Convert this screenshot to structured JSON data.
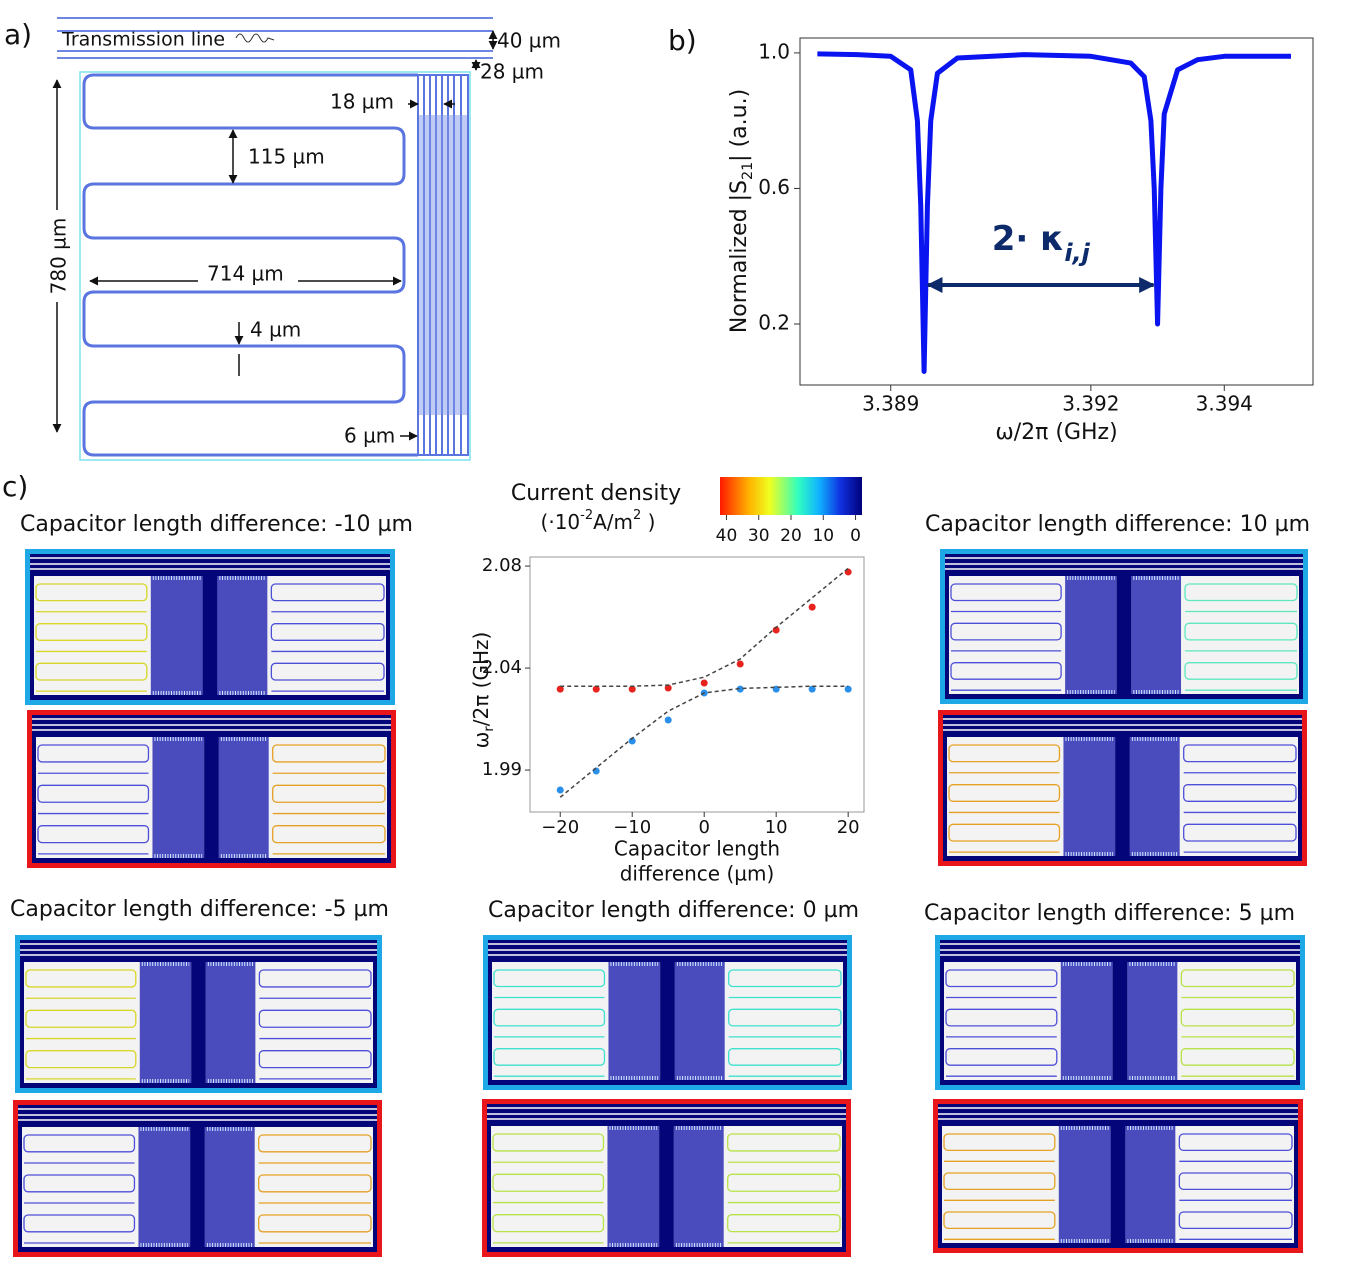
{
  "panel_labels": [
    "a)",
    "b)",
    "c)"
  ],
  "panel_a": {
    "transmission_line": "Transmission line",
    "dimensions": [
      "40 µm",
      "28 µm",
      "18 µm",
      "115 µm",
      "780 µm",
      "714 µm",
      "4 µm",
      "6 µm"
    ]
  },
  "chart_data": [
    {
      "type": "line",
      "xlabel": "ω/2π (GHz)",
      "ylabel": [
        "Normalized |S",
        "21",
        "| (a.u.)"
      ],
      "x": [
        3.3879,
        3.3885,
        3.389,
        3.3893,
        3.3894,
        3.38945,
        3.3895,
        3.38955,
        3.3896,
        3.3897,
        3.39,
        3.391,
        3.392,
        3.3926,
        3.3928,
        3.3929,
        3.39295,
        3.393,
        3.39305,
        3.3931,
        3.3933,
        3.3936,
        3.394,
        3.395
      ],
      "values": [
        0.997,
        0.995,
        0.99,
        0.95,
        0.8,
        0.55,
        0.06,
        0.55,
        0.8,
        0.94,
        0.985,
        0.995,
        0.99,
        0.97,
        0.93,
        0.8,
        0.6,
        0.2,
        0.6,
        0.82,
        0.95,
        0.98,
        0.99,
        0.99
      ],
      "color": "#0a14f0",
      "xlim": [
        3.38764,
        3.39533
      ],
      "xticks": [
        3.389,
        3.392,
        3.394
      ],
      "ylim": [
        0.02,
        1.044
      ],
      "yticks": [
        {
          "value": 1,
          "label": "1.0"
        },
        {
          "value": 0.6,
          "label": "0.6"
        },
        {
          "value": 0.2,
          "label": "0.2"
        }
      ],
      "annotation": {
        "text": "2· κ",
        "subscript": "i,j",
        "color": "#0d2a6b"
      }
    },
    {
      "type": "scatter",
      "xlabel": [
        "Capacitor length",
        "difference (µm)"
      ],
      "ylabel": [
        "ω",
        "r",
        "/2π (GHz)"
      ],
      "xlim": [
        -24.2,
        22.2
      ],
      "xticks": [
        {
          "value": -20,
          "label": "−20"
        },
        {
          "value": -10,
          "label": "−10"
        },
        0,
        10,
        20
      ],
      "ylim": [
        1.9715,
        2.084
      ],
      "yticks": [
        2.08,
        {
          "value": 2.035,
          "label": "2.04"
        },
        1.99
      ],
      "series": [
        {
          "color": "#e8221c",
          "x": [
            -20,
            -15,
            -10,
            -5,
            0,
            5,
            10,
            15,
            20
          ],
          "values": [
            2.0257,
            2.0257,
            2.0257,
            2.0262,
            2.0284,
            2.0368,
            2.0518,
            2.0619,
            2.0774
          ]
        },
        {
          "color": "#2a8fe8",
          "x": [
            -20,
            -15,
            -10,
            -5,
            0,
            5,
            10,
            15,
            20
          ],
          "values": [
            1.9812,
            1.9896,
            2.0028,
            2.0121,
            2.024,
            2.0257,
            2.0257,
            2.0257,
            2.0257
          ]
        },
        {
          "color": "#444444",
          "style": "dashed",
          "x": [
            -20,
            -15,
            -10,
            -5,
            0,
            5,
            10,
            15,
            20
          ],
          "values": [
            2.027,
            2.027,
            2.027,
            2.0275,
            2.031,
            2.039,
            2.053,
            2.066,
            2.079
          ]
        },
        {
          "color": "#444444",
          "style": "dashed",
          "x": [
            -20,
            -15,
            -10,
            -5,
            0,
            5,
            10,
            15,
            20
          ],
          "values": [
            1.978,
            1.991,
            2.004,
            2.016,
            2.024,
            2.026,
            2.0265,
            2.027,
            2.027
          ]
        }
      ]
    }
  ],
  "colorbar": {
    "title": "Current density",
    "unit": [
      "(·10",
      "-2",
      "A/m",
      "2",
      " )"
    ],
    "clim": [
      42,
      -2
    ],
    "ticks": [
      40,
      30,
      20,
      10,
      0
    ]
  },
  "simulations": [
    {
      "title": "Capacitor length difference: -10 µm"
    },
    {
      "title": "Capacitor length difference: 10 µm"
    },
    {
      "title": "Capacitor length difference: -5 µm"
    },
    {
      "title": "Capacitor length difference: 0 µm"
    },
    {
      "title": "Capacitor length difference: 5 µm"
    }
  ]
}
